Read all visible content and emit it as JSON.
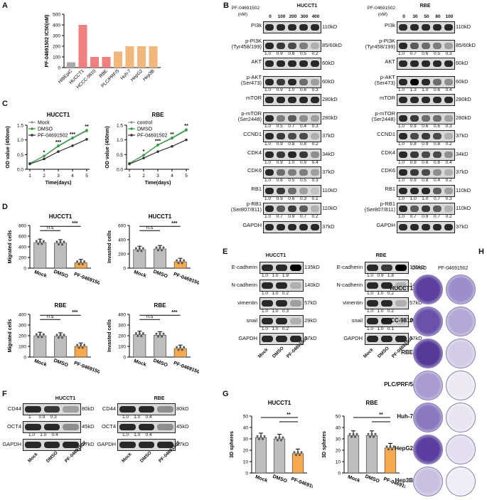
{
  "panels": {
    "A": "A",
    "B": "B",
    "C": "C",
    "D": "D",
    "E": "E",
    "F": "F",
    "G": "G",
    "H": "H"
  },
  "colors": {
    "bar_gray": "#a9a9a9",
    "bar_red": "#f08080",
    "bar_orange": "#f2b77c",
    "green": "#2e9e3e",
    "dark": "#333333",
    "orange_fill": "#f6a94e"
  },
  "chart_data": [
    {
      "id": "A",
      "type": "bar",
      "ylabel": "PF-04691502 IC50(nM)",
      "ylim": [
        0,
        500
      ],
      "yticks": [
        "0",
        "100",
        "200",
        "300",
        "400",
        "500"
      ],
      "categories": [
        "HIBEpiC",
        "HUCCT1",
        "HCCC-9810",
        "RBE",
        "PLC/PRF/5",
        "Huh-7",
        "HepG2",
        "Hep3B"
      ],
      "values": [
        50,
        400,
        100,
        100,
        150,
        200,
        200,
        200
      ]
    },
    {
      "id": "C1",
      "type": "line",
      "title": "HUCCT1",
      "xlabel": "Time(days)",
      "ylabel": "OD value (450nm)",
      "xlim": [
        1,
        5
      ],
      "ylim": [
        0,
        1.5
      ],
      "xticks": [
        "1",
        "2",
        "3",
        "4",
        "5"
      ],
      "yticks": [
        "0.0",
        "0.5",
        "1.0",
        "1.5"
      ],
      "series": [
        {
          "name": "Mock",
          "values": [
            0.2,
            0.45,
            0.78,
            1.05,
            1.3
          ]
        },
        {
          "name": "DMSO",
          "values": [
            0.2,
            0.45,
            0.8,
            1.07,
            1.33
          ]
        },
        {
          "name": "PF-04691502",
          "values": [
            0.18,
            0.35,
            0.6,
            0.8,
            1.02
          ]
        }
      ],
      "sig": [
        "*",
        "***",
        "***",
        "**"
      ]
    },
    {
      "id": "C2",
      "type": "line",
      "title": "RBE",
      "xlabel": "Time(days)",
      "ylabel": "OD value (450nm)",
      "xlim": [
        1,
        5
      ],
      "ylim": [
        0,
        1.5
      ],
      "xticks": [
        "1",
        "2",
        "3",
        "4",
        "5"
      ],
      "yticks": [
        "0.0",
        "0.5",
        "1.0",
        "1.5"
      ],
      "series": [
        {
          "name": "control",
          "values": [
            0.2,
            0.48,
            0.82,
            1.05,
            1.32
          ]
        },
        {
          "name": "DMSO",
          "values": [
            0.2,
            0.48,
            0.83,
            1.07,
            1.35
          ]
        },
        {
          "name": "PF-04691502",
          "values": [
            0.18,
            0.38,
            0.6,
            0.78,
            1.0
          ]
        }
      ],
      "sig": [
        "*",
        "***",
        "**",
        "**"
      ]
    },
    {
      "id": "D1",
      "type": "bar",
      "title": "HUCCT1",
      "ylabel": "Migrated cells",
      "ylim": [
        0,
        800
      ],
      "yticks": [
        "0",
        "200",
        "400",
        "600",
        "800"
      ],
      "categories": [
        "Mock",
        "DMSO",
        "PF-04691502"
      ],
      "values": [
        480,
        470,
        100
      ],
      "sig": [
        "n.s",
        "***"
      ]
    },
    {
      "id": "D2",
      "type": "bar",
      "title": "HUCCT1",
      "ylabel": "Invasted cells",
      "ylim": [
        0,
        600
      ],
      "yticks": [
        "0",
        "200",
        "400",
        "600"
      ],
      "categories": [
        "Mock",
        "DMSO",
        "PF-04691502"
      ],
      "values": [
        260,
        270,
        90
      ],
      "sig": [
        "n.s",
        "***"
      ]
    },
    {
      "id": "D3",
      "type": "bar",
      "title": "RBE",
      "ylabel": "Migrated cells",
      "ylim": [
        0,
        400
      ],
      "yticks": [
        "0",
        "100",
        "200",
        "300",
        "400"
      ],
      "categories": [
        "Mock",
        "DMSO",
        "PF-04691502"
      ],
      "values": [
        200,
        195,
        100
      ],
      "sig": [
        "n.s",
        "***"
      ]
    },
    {
      "id": "D4",
      "type": "bar",
      "title": "RBE",
      "ylabel": "Invasted cells",
      "ylim": [
        0,
        400
      ],
      "yticks": [
        "0",
        "100",
        "200",
        "300",
        "400"
      ],
      "categories": [
        "Mock",
        "DMSO",
        "PF-04691502"
      ],
      "values": [
        210,
        205,
        80
      ],
      "sig": [
        "n.s",
        "***"
      ]
    },
    {
      "id": "G1",
      "type": "bar",
      "title": "HUCCT1",
      "ylabel": "3D spheres",
      "ylim": [
        0,
        50
      ],
      "yticks": [
        "0",
        "10",
        "20",
        "30",
        "40",
        "50"
      ],
      "categories": [
        "Mock",
        "DMSO",
        "PF-04691502"
      ],
      "values": [
        31,
        30,
        17
      ],
      "sig": [
        "**"
      ]
    },
    {
      "id": "G2",
      "type": "bar",
      "title": "RBE",
      "ylabel": "3D spheres",
      "ylim": [
        0,
        50
      ],
      "yticks": [
        "0",
        "10",
        "20",
        "30",
        "40",
        "50"
      ],
      "categories": [
        "Mock",
        "DMSO",
        "PF-04691502"
      ],
      "values": [
        33,
        33,
        22
      ],
      "sig": [
        "**"
      ]
    }
  ],
  "blotB": {
    "drug_label": "PF-04691502",
    "unit": "(nM)",
    "left": {
      "title": "HUCCT1",
      "doses": [
        "0",
        "100",
        "200",
        "300",
        "400"
      ]
    },
    "right": {
      "title": "RBE",
      "doses": [
        "0",
        "30",
        "50",
        "80",
        "100"
      ]
    },
    "rows": [
      {
        "name": "PI3k",
        "kd": "110kD",
        "qL": "",
        "qR": ""
      },
      {
        "name": "p-PI3K\n(Tyr458/199)",
        "kd": "85/60kD",
        "qL": "1.0  0.9  0.8  0.5  0.2",
        "qR": "1.0  0.7  0.6  0.5  0.3"
      },
      {
        "name": "AKT",
        "kd": "60kD",
        "qL": "",
        "qR": ""
      },
      {
        "name": "p-AKT\n(Ser473)",
        "kd": "60kD",
        "qL": "1.0  0.9  1.0  0.6  0.3",
        "qR": "1.0  1.3  1.0  0.6  0.4"
      },
      {
        "name": "mTOR",
        "kd": "280kD",
        "qL": "",
        "qR": ""
      },
      {
        "name": "p-mTOR\n(Ser2448)",
        "kd": "280kD",
        "qL": "1.0  0.5  0.7  0.4  0.3",
        "qR": "1.0  0.9  0.6  0.6  0.3"
      },
      {
        "name": "CCND1",
        "kd": "37kD",
        "qL": "1.0  0.9  0.8  0.8  0.2",
        "qR": "1.0  0.8  0.9  0.8  0.2"
      },
      {
        "name": "CDK4",
        "kd": "34kD",
        "qL": "1.0  0.9  1.0  0.9  0.4",
        "qR": "1.0  0.9  0.8  0.8  0.4"
      },
      {
        "name": "CDK6",
        "kd": "37kD",
        "qL": "1.0  0.6  0.5  0.5  0.3",
        "qR": "1.0  0.9  0.8  0.4  0.2"
      },
      {
        "name": "RB1",
        "kd": "110kD",
        "qL": "1.0  0.9  0.6  0.3  0.1",
        "qR": "1.0  1.0  1.0  0.7  0.3"
      },
      {
        "name": "p-RB1\n(Ser807/811)",
        "kd": "110kD",
        "qL": "1.0  0.7  0.9  0.7  0.2",
        "qR": "1.0  0.7  0.9  0.7  0.2"
      },
      {
        "name": "GAPDH",
        "kd": "37kD",
        "qL": "",
        "qR": ""
      }
    ]
  },
  "blotE": {
    "left_title": "HUCCT1",
    "right_title": "RBE",
    "rows": [
      {
        "name": "E-cadherin",
        "kd": "135kD",
        "qL": "1.0   1.0   1.9",
        "qR": "1.0   0.9   1.8"
      },
      {
        "name": "N-cadherin",
        "kd": "140kD",
        "qL": "1.0   1.0   0.2",
        "qR": "1.0   1.0   0.2"
      },
      {
        "name": "vimentin",
        "kd": "57kD",
        "qL": "1.0   1.0   0.3",
        "qR": "1.0   1.0   0.2"
      },
      {
        "name": "snail",
        "kd": "29kD",
        "qL": "1.0   1.0   0.2",
        "qR": "1.0   1.0   0.1"
      },
      {
        "name": "GAPDH",
        "kd": "37kD",
        "qL": "",
        "qR": ""
      }
    ],
    "lanes": [
      "Mock",
      "DMSO",
      "PF-04691502"
    ]
  },
  "blotF": {
    "left_title": "HUCCT1",
    "right_title": "RBE",
    "rows": [
      {
        "name": "CD44",
        "kd": "80kD",
        "qL": "1      0.9    0.3",
        "qR": "1.0    1.0    0.4"
      },
      {
        "name": "OCT4",
        "kd": "45kD",
        "qL": "1.0    1.0    0.4",
        "qR": "1.0    1.0    0.4"
      },
      {
        "name": "GAPDH",
        "kd": "37kD",
        "qL": "",
        "qR": ""
      }
    ],
    "lanes": [
      "Mock",
      "DMSO",
      "PF-04691502"
    ]
  },
  "panelH": {
    "col_dmso": "DMSO",
    "col_pf": "PF-04691502",
    "rows": [
      "HUCCT1",
      "HCCC-9810",
      "RBE",
      "PLC/PRF/5",
      "Huh-7",
      "HepG2",
      "Hep3B"
    ]
  }
}
